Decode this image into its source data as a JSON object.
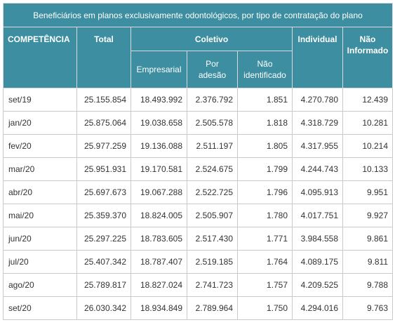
{
  "table": {
    "caption": "Beneficiários em planos exclusivamente odontológicos, por tipo de contratação do plano",
    "headers": {
      "competencia": "COMPETÊNCIA",
      "total": "Total",
      "coletivo": "Coletivo",
      "empresarial": "Empresarial",
      "por_adesao_1": "Por",
      "por_adesao_2": "adesão",
      "nao_identificado_1": "Não",
      "nao_identificado_2": "identificado",
      "individual": "Individual",
      "nao_informado_1": "Não",
      "nao_informado_2": "Informado"
    },
    "rows": [
      [
        "set/19",
        "25.155.854",
        "18.493.992",
        "2.376.792",
        "1.851",
        "4.270.780",
        "12.439"
      ],
      [
        "jan/20",
        "25.875.064",
        "19.038.658",
        "2.505.578",
        "1.818",
        "4.318.729",
        "10.281"
      ],
      [
        "fev/20",
        "25.977.259",
        "19.136.088",
        "2.511.197",
        "1.805",
        "4.317.955",
        "10.214"
      ],
      [
        "mar/20",
        "25.951.931",
        "19.170.581",
        "2.524.675",
        "1.799",
        "4.244.743",
        "10.133"
      ],
      [
        "abr/20",
        "25.697.673",
        "19.067.288",
        "2.522.725",
        "1.796",
        "4.095.913",
        "9.951"
      ],
      [
        "mai/20",
        "25.359.370",
        "18.824.005",
        "2.505.907",
        "1.780",
        "4.017.751",
        "9.927"
      ],
      [
        "jun/20",
        "25.297.225",
        "18.783.605",
        "2.517.430",
        "1.771",
        "3.984.558",
        "9.861"
      ],
      [
        "jul/20",
        "25.407.342",
        "18.787.407",
        "2.519.185",
        "1.764",
        "4.089.175",
        "9.811"
      ],
      [
        "ago/20",
        "25.789.817",
        "18.827.024",
        "2.741.723",
        "1.757",
        "4.209.525",
        "9.788"
      ],
      [
        "set/20",
        "26.030.342",
        "18.934.849",
        "2.789.964",
        "1.750",
        "4.294.016",
        "9.763"
      ]
    ]
  },
  "colors": {
    "header_bg": "#3c8ea0",
    "header_text": "#ffffff",
    "border": "#c9c9c9",
    "cell_text": "#333333"
  }
}
